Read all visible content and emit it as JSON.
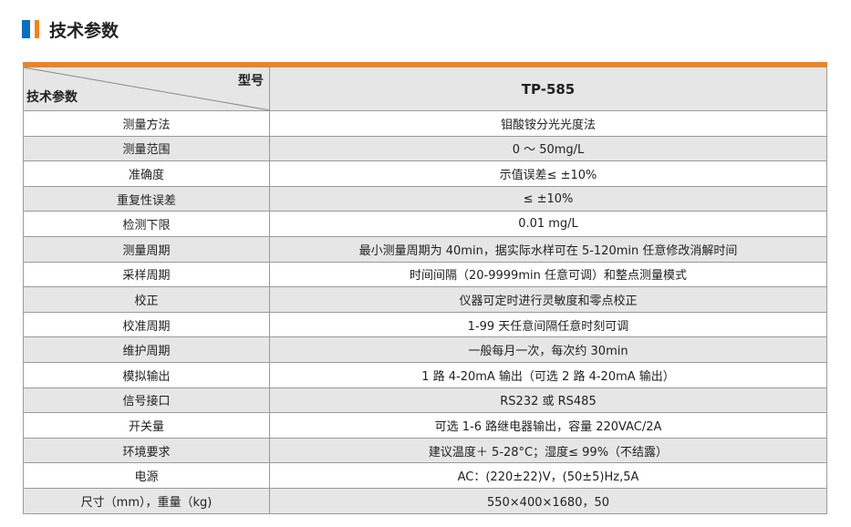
{
  "section_title": "技术参数",
  "colors": {
    "accent_blue": "#0a6ebd",
    "accent_orange": "#f0831e",
    "row_gray": "#e6e6e6"
  },
  "table": {
    "corner_top_right": "型号",
    "corner_bottom_left": "技术参数",
    "model": "TP-585",
    "rows": [
      {
        "param": "测量方法",
        "value": "钼酸铵分光光度法"
      },
      {
        "param": "测量范围",
        "value": "0 ～ 50mg/L"
      },
      {
        "param": "准确度",
        "value": "示值误差≤ ±10%"
      },
      {
        "param": "重复性误差",
        "value": "≤ ±10%"
      },
      {
        "param": "检测下限",
        "value": "0.01 mg/L"
      },
      {
        "param": "测量周期",
        "value": "最小测量周期为 40min，据实际水样可在 5-120min 任意修改消解时间"
      },
      {
        "param": "采样周期",
        "value": "时间间隔（20-9999min 任意可调）和整点测量模式"
      },
      {
        "param": "校正",
        "value": "仪器可定时进行灵敏度和零点校正"
      },
      {
        "param": "校准周期",
        "value": "1-99 天任意间隔任意时刻可调"
      },
      {
        "param": "维护周期",
        "value": "一般每月一次，每次约 30min"
      },
      {
        "param": "模拟输出",
        "value": "1 路 4-20mA 输出（可选 2 路 4-20mA 输出）"
      },
      {
        "param": "信号接口",
        "value": "RS232 或 RS485"
      },
      {
        "param": "开关量",
        "value": "可选 1-6 路继电器输出，容量 220VAC/2A"
      },
      {
        "param": "环境要求",
        "value": "建议温度＋ 5-28°C；湿度≤ 99%（不结露）"
      },
      {
        "param": "电源",
        "value": "AC：(220±22)V，(50±5)Hz,5A"
      },
      {
        "param": "尺寸（mm），重量（kg)",
        "value": "550×400×1680，50"
      }
    ]
  }
}
